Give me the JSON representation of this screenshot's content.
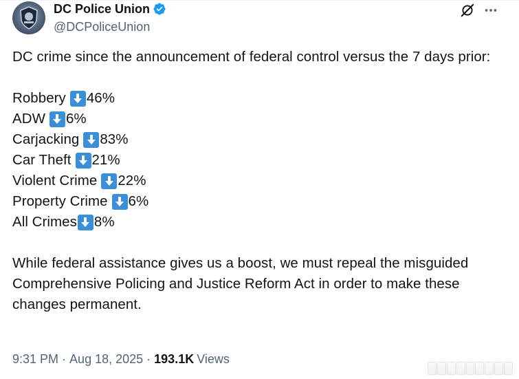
{
  "author": {
    "display_name": "DC Police Union",
    "handle": "@DCPoliceUnion",
    "verified": true,
    "avatar_icon": "police-badge-icon"
  },
  "header_actions": {
    "grok_icon": "grok-icon",
    "more_icon": "more-options-icon"
  },
  "post": {
    "intro": "DC crime since the announcement of federal control versus the 7 days prior:",
    "stats": [
      {
        "label": "Robbery",
        "change": "46%"
      },
      {
        "label": "ADW",
        "change": "6%"
      },
      {
        "label": "Carjacking",
        "change": "83%"
      },
      {
        "label": "Car Theft",
        "change": "21%"
      },
      {
        "label": "Violent Crime",
        "change": "22%"
      },
      {
        "label": "Property Crime",
        "change": "6%"
      },
      {
        "label": "All Crimes",
        "change": "8%"
      }
    ],
    "closing": "While federal assistance gives us a boost, we must repeal the misguided Comprehensive Policing and Justice Reform Act in order to make these changes permanent.",
    "arrow_icon": "down-arrow-emoji-icon"
  },
  "meta": {
    "time": "9:31 PM",
    "separator": "·",
    "date": "Aug 18, 2025",
    "views_count": "193.1K",
    "views_label": "Views"
  },
  "colors": {
    "text": "#0f1419",
    "secondary": "#536471",
    "verified": "#1d9bf0",
    "arrow_emoji": "#3b8ed8"
  }
}
